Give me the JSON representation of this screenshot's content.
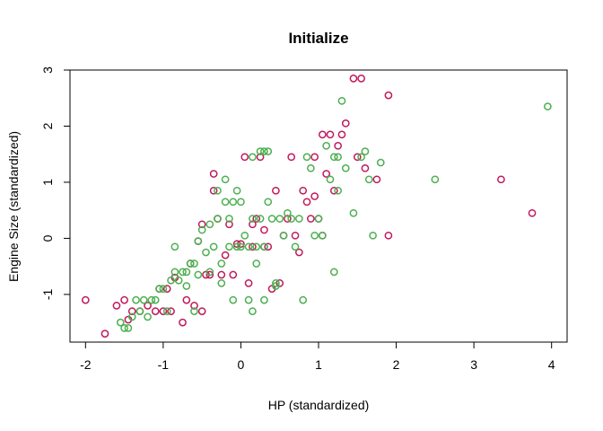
{
  "chart_data": {
    "type": "scatter",
    "title": "Initialize",
    "xlabel": "HP (standardized)",
    "ylabel": "Engine Size (standardized)",
    "xlim": [
      -2.2,
      4.2
    ],
    "ylim": [
      -1.85,
      3.0
    ],
    "x_ticks": [
      -2,
      -1,
      0,
      1,
      2,
      3,
      4
    ],
    "y_ticks": [
      -1,
      0,
      1,
      2,
      3
    ],
    "grid": false,
    "legend": "none",
    "series": [
      {
        "color": "#c2185b",
        "points": [
          [
            -2.0,
            -1.1
          ],
          [
            -1.75,
            -1.7
          ],
          [
            -1.6,
            -1.2
          ],
          [
            -1.5,
            -1.1
          ],
          [
            -1.45,
            -1.45
          ],
          [
            -1.4,
            -1.3
          ],
          [
            -1.3,
            -1.3
          ],
          [
            -1.2,
            -1.2
          ],
          [
            -1.1,
            -1.3
          ],
          [
            -1.05,
            -0.9
          ],
          [
            -1.0,
            -1.3
          ],
          [
            -0.9,
            -1.3
          ],
          [
            -0.85,
            -0.7
          ],
          [
            -0.75,
            -1.5
          ],
          [
            -0.7,
            -1.1
          ],
          [
            -0.65,
            -0.45
          ],
          [
            -0.6,
            -1.2
          ],
          [
            -0.55,
            -0.05
          ],
          [
            -0.5,
            -1.3
          ],
          [
            -0.45,
            -0.65
          ],
          [
            -0.4,
            -0.65
          ],
          [
            -0.35,
            1.15
          ],
          [
            -0.35,
            0.85
          ],
          [
            -0.3,
            0.35
          ],
          [
            -0.25,
            -0.65
          ],
          [
            -0.2,
            -0.3
          ],
          [
            -0.15,
            0.25
          ],
          [
            -0.1,
            -0.65
          ],
          [
            -0.05,
            -0.1
          ],
          [
            0.0,
            -0.1
          ],
          [
            0.05,
            1.45
          ],
          [
            0.1,
            -0.8
          ],
          [
            0.15,
            0.25
          ],
          [
            0.2,
            0.35
          ],
          [
            0.25,
            1.45
          ],
          [
            0.3,
            0.15
          ],
          [
            0.35,
            -0.15
          ],
          [
            0.4,
            -0.9
          ],
          [
            0.45,
            0.85
          ],
          [
            0.5,
            -0.8
          ],
          [
            0.55,
            0.05
          ],
          [
            0.6,
            0.35
          ],
          [
            0.65,
            1.45
          ],
          [
            0.7,
            0.05
          ],
          [
            0.75,
            -0.25
          ],
          [
            0.8,
            0.85
          ],
          [
            0.85,
            0.65
          ],
          [
            0.9,
            0.35
          ],
          [
            0.95,
            1.45
          ],
          [
            1.0,
            0.35
          ],
          [
            1.05,
            1.85
          ],
          [
            1.1,
            1.15
          ],
          [
            1.15,
            1.85
          ],
          [
            1.2,
            0.85
          ],
          [
            1.25,
            1.65
          ],
          [
            1.3,
            1.85
          ],
          [
            1.35,
            2.05
          ],
          [
            1.45,
            2.85
          ],
          [
            1.5,
            1.45
          ],
          [
            1.55,
            2.85
          ],
          [
            1.6,
            1.25
          ],
          [
            1.75,
            1.05
          ],
          [
            1.9,
            2.55
          ],
          [
            1.9,
            0.05
          ],
          [
            3.35,
            1.05
          ],
          [
            3.75,
            0.45
          ],
          [
            -0.95,
            -0.9
          ],
          [
            0.3,
            -0.15
          ],
          [
            1.05,
            0.05
          ],
          [
            0.15,
            -0.15
          ],
          [
            -0.5,
            0.25
          ],
          [
            0.95,
            0.75
          ]
        ]
      },
      {
        "color": "#4caf50",
        "points": [
          [
            -1.55,
            -1.5
          ],
          [
            -1.5,
            -1.6
          ],
          [
            -1.45,
            -1.6
          ],
          [
            -1.4,
            -1.4
          ],
          [
            -1.35,
            -1.1
          ],
          [
            -1.3,
            -1.3
          ],
          [
            -1.25,
            -1.1
          ],
          [
            -1.2,
            -1.4
          ],
          [
            -1.15,
            -1.1
          ],
          [
            -1.1,
            -1.1
          ],
          [
            -1.05,
            -0.9
          ],
          [
            -1.0,
            -0.9
          ],
          [
            -0.95,
            -1.3
          ],
          [
            -0.9,
            -0.75
          ],
          [
            -0.85,
            -0.6
          ],
          [
            -0.85,
            -0.15
          ],
          [
            -0.8,
            -0.75
          ],
          [
            -0.75,
            -0.6
          ],
          [
            -0.7,
            -0.6
          ],
          [
            -0.7,
            -0.85
          ],
          [
            -0.65,
            -0.45
          ],
          [
            -0.6,
            -0.45
          ],
          [
            -0.6,
            -1.3
          ],
          [
            -0.55,
            -0.05
          ],
          [
            -0.5,
            0.15
          ],
          [
            -0.45,
            -0.25
          ],
          [
            -0.4,
            -0.6
          ],
          [
            -0.4,
            0.25
          ],
          [
            -0.35,
            -0.15
          ],
          [
            -0.3,
            0.85
          ],
          [
            -0.3,
            0.35
          ],
          [
            -0.25,
            -0.8
          ],
          [
            -0.25,
            -0.45
          ],
          [
            -0.2,
            1.05
          ],
          [
            -0.2,
            0.65
          ],
          [
            -0.15,
            0.35
          ],
          [
            -0.15,
            -0.15
          ],
          [
            -0.1,
            0.65
          ],
          [
            -0.05,
            0.85
          ],
          [
            -0.05,
            -0.15
          ],
          [
            0.0,
            0.65
          ],
          [
            0.0,
            -0.15
          ],
          [
            0.05,
            0.05
          ],
          [
            0.1,
            -0.15
          ],
          [
            0.1,
            -1.1
          ],
          [
            0.15,
            1.45
          ],
          [
            0.15,
            0.35
          ],
          [
            0.2,
            -0.15
          ],
          [
            0.2,
            -0.45
          ],
          [
            0.25,
            1.55
          ],
          [
            0.25,
            0.35
          ],
          [
            0.3,
            1.55
          ],
          [
            0.3,
            -0.15
          ],
          [
            0.35,
            1.55
          ],
          [
            0.35,
            0.65
          ],
          [
            0.4,
            0.35
          ],
          [
            0.45,
            -0.85
          ],
          [
            0.5,
            0.35
          ],
          [
            0.55,
            0.05
          ],
          [
            0.6,
            0.45
          ],
          [
            0.65,
            0.35
          ],
          [
            0.7,
            -0.15
          ],
          [
            0.75,
            0.35
          ],
          [
            0.8,
            -1.1
          ],
          [
            0.85,
            1.45
          ],
          [
            0.9,
            1.25
          ],
          [
            0.95,
            0.05
          ],
          [
            1.0,
            0.35
          ],
          [
            1.05,
            0.05
          ],
          [
            1.1,
            1.65
          ],
          [
            1.15,
            1.05
          ],
          [
            1.2,
            -0.6
          ],
          [
            1.2,
            1.45
          ],
          [
            1.25,
            0.85
          ],
          [
            1.3,
            2.45
          ],
          [
            1.35,
            1.25
          ],
          [
            1.45,
            0.45
          ],
          [
            1.55,
            1.45
          ],
          [
            1.6,
            1.55
          ],
          [
            1.65,
            1.05
          ],
          [
            1.7,
            0.05
          ],
          [
            1.8,
            1.35
          ],
          [
            2.5,
            1.05
          ],
          [
            3.95,
            2.35
          ],
          [
            1.25,
            1.45
          ],
          [
            -0.1,
            -1.1
          ],
          [
            0.15,
            -1.3
          ],
          [
            0.3,
            -1.1
          ],
          [
            -0.55,
            -0.65
          ],
          [
            0.45,
            -0.8
          ]
        ]
      }
    ]
  }
}
